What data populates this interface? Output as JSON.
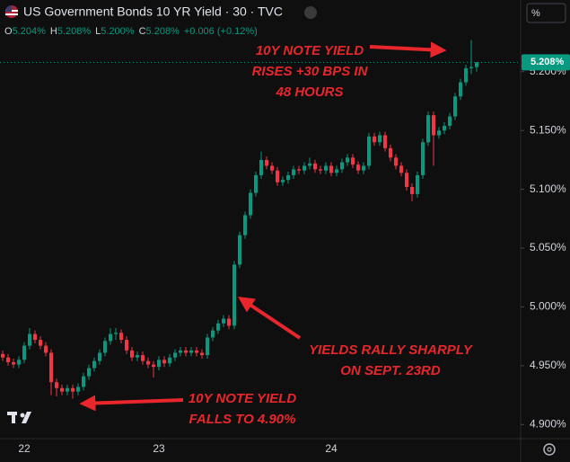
{
  "chart_data": {
    "type": "candlestick",
    "title": "US Government Bonds 10 YR Yield · 30 · TVC",
    "ohlc_legend": [
      {
        "label": "O",
        "value": "5.204%"
      },
      {
        "label": "H",
        "value": "5.208%"
      },
      {
        "label": "L",
        "value": "5.200%"
      },
      {
        "label": "C",
        "value": "5.208%"
      }
    ],
    "change": "+0.006 (+0.12%)",
    "scale_mode": "%",
    "last_price_label": "5.208%",
    "up_color": "#089981",
    "down_color": "#f23645",
    "categories": [
      null,
      null,
      null,
      null,
      "22",
      null,
      null,
      null,
      null,
      null,
      null,
      null,
      null,
      null,
      null,
      null,
      null,
      null,
      null,
      null,
      null,
      null,
      null,
      null,
      null,
      null,
      null,
      null,
      null,
      "23",
      null,
      null,
      null,
      null,
      null,
      null,
      null,
      null,
      null,
      null,
      null,
      null,
      null,
      null,
      null,
      null,
      null,
      null,
      null,
      null,
      null,
      null,
      null,
      null,
      null,
      null,
      null,
      null,
      null,
      null,
      null,
      "24",
      null,
      null,
      null,
      null,
      null,
      null,
      null,
      null,
      null,
      null,
      null,
      null,
      null,
      null,
      null,
      null,
      null,
      null,
      null,
      null,
      null,
      null,
      null,
      null,
      null,
      null,
      null
    ],
    "open": [
      4.96,
      4.957,
      4.953,
      4.951,
      4.955,
      4.967,
      4.977,
      4.972,
      4.967,
      4.961,
      4.936,
      4.931,
      4.928,
      4.931,
      4.928,
      4.932,
      4.941,
      4.948,
      4.954,
      4.961,
      4.971,
      4.977,
      4.978,
      4.972,
      4.963,
      4.957,
      4.959,
      4.954,
      4.951,
      4.949,
      4.955,
      4.952,
      4.957,
      4.961,
      4.963,
      4.961,
      4.963,
      4.961,
      4.959,
      4.974,
      4.98,
      4.986,
      4.99,
      4.984,
      5.036,
      5.061,
      5.078,
      5.097,
      5.112,
      5.125,
      5.12,
      5.116,
      5.106,
      5.108,
      5.112,
      5.117,
      5.116,
      5.12,
      5.122,
      5.117,
      5.116,
      5.12,
      5.114,
      5.117,
      5.123,
      5.127,
      5.121,
      5.116,
      5.12,
      5.145,
      5.14,
      5.146,
      5.135,
      5.127,
      5.12,
      5.114,
      5.102,
      5.096,
      5.112,
      5.14,
      5.163,
      5.146,
      5.15,
      5.154,
      5.162,
      5.179,
      5.191,
      5.203,
      5.204
    ],
    "high": [
      4.963,
      4.96,
      4.956,
      4.958,
      4.97,
      4.982,
      4.98,
      4.975,
      4.97,
      4.964,
      4.939,
      4.934,
      4.934,
      4.934,
      4.935,
      4.944,
      4.951,
      4.957,
      4.964,
      4.974,
      4.982,
      4.982,
      4.981,
      4.975,
      4.966,
      4.962,
      4.962,
      4.957,
      4.954,
      4.958,
      4.958,
      4.96,
      4.964,
      4.966,
      4.966,
      4.966,
      4.966,
      4.964,
      4.977,
      4.983,
      4.989,
      4.993,
      4.993,
      5.039,
      5.064,
      5.081,
      5.1,
      5.115,
      5.132,
      5.128,
      5.123,
      5.119,
      5.111,
      5.115,
      5.12,
      5.12,
      5.123,
      5.127,
      5.125,
      5.12,
      5.123,
      5.123,
      5.12,
      5.126,
      5.13,
      5.13,
      5.124,
      5.123,
      5.148,
      5.148,
      5.149,
      5.149,
      5.138,
      5.13,
      5.123,
      5.117,
      5.105,
      5.115,
      5.143,
      5.166,
      5.166,
      5.153,
      5.157,
      5.165,
      5.182,
      5.194,
      5.206,
      5.227,
      5.208
    ],
    "low": [
      4.954,
      4.95,
      4.948,
      4.948,
      4.952,
      4.964,
      4.969,
      4.964,
      4.958,
      4.925,
      4.924,
      4.925,
      4.925,
      4.922,
      4.925,
      4.929,
      4.938,
      4.945,
      4.951,
      4.958,
      4.968,
      4.972,
      4.969,
      4.96,
      4.954,
      4.954,
      4.951,
      4.948,
      4.94,
      4.946,
      4.949,
      4.949,
      4.954,
      4.958,
      4.958,
      4.958,
      4.958,
      4.956,
      4.956,
      4.971,
      4.977,
      4.983,
      4.981,
      4.981,
      5.033,
      5.058,
      5.075,
      5.094,
      5.109,
      5.117,
      5.113,
      5.103,
      5.103,
      5.105,
      5.109,
      5.113,
      5.113,
      5.117,
      5.114,
      5.113,
      5.113,
      5.111,
      5.111,
      5.114,
      5.12,
      5.118,
      5.113,
      5.113,
      5.117,
      5.137,
      5.137,
      5.132,
      5.124,
      5.117,
      5.111,
      5.099,
      5.09,
      5.093,
      5.109,
      5.137,
      5.12,
      5.143,
      5.147,
      5.151,
      5.159,
      5.176,
      5.188,
      5.198,
      5.2
    ],
    "close": [
      4.957,
      4.953,
      4.951,
      4.955,
      4.967,
      4.977,
      4.972,
      4.967,
      4.961,
      4.936,
      4.931,
      4.928,
      4.931,
      4.928,
      4.932,
      4.941,
      4.948,
      4.954,
      4.961,
      4.971,
      4.977,
      4.978,
      4.972,
      4.963,
      4.957,
      4.959,
      4.954,
      4.951,
      4.949,
      4.955,
      4.952,
      4.957,
      4.961,
      4.963,
      4.961,
      4.963,
      4.961,
      4.959,
      4.974,
      4.98,
      4.986,
      4.99,
      4.984,
      5.036,
      5.061,
      5.078,
      5.097,
      5.112,
      5.125,
      5.12,
      5.116,
      5.106,
      5.108,
      5.112,
      5.117,
      5.116,
      5.12,
      5.122,
      5.117,
      5.116,
      5.12,
      5.114,
      5.117,
      5.123,
      5.127,
      5.121,
      5.116,
      5.12,
      5.145,
      5.14,
      5.146,
      5.135,
      5.127,
      5.12,
      5.114,
      5.102,
      5.096,
      5.112,
      5.14,
      5.163,
      5.146,
      5.15,
      5.154,
      5.162,
      5.179,
      5.191,
      5.203,
      5.204,
      5.208
    ],
    "ylim": [
      4.888,
      5.261
    ],
    "yticks": [
      {
        "value": 4.9,
        "label": "4.900%"
      },
      {
        "value": 4.95,
        "label": "4.950%"
      },
      {
        "value": 5.0,
        "label": "5.000%"
      },
      {
        "value": 5.05,
        "label": "5.050%"
      },
      {
        "value": 5.1,
        "label": "5.100%"
      },
      {
        "value": 5.15,
        "label": "5.150%"
      },
      {
        "value": 5.2,
        "label": "5.200%"
      }
    ],
    "annotations": [
      {
        "lines": [
          "10Y NOTE YIELD",
          "RISES +30 BPS IN",
          "48 HOURS"
        ]
      },
      {
        "lines": [
          "YIELDS RALLY SHARPLY",
          "ON SEPT. 23RD"
        ]
      },
      {
        "lines": [
          "10Y NOTE YIELD",
          "FALLS TO 4.90%"
        ]
      }
    ]
  }
}
